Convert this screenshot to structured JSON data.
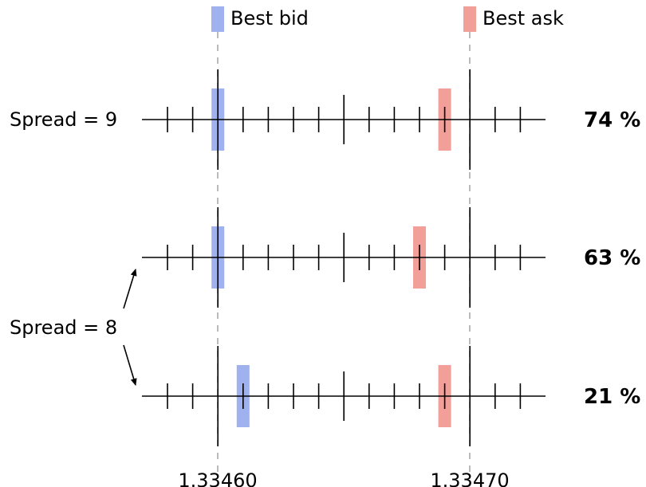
{
  "legend": {
    "bid": {
      "label": "Best bid",
      "color": "#9fb2ef"
    },
    "ask": {
      "label": "Best ask",
      "color": "#f29e99"
    }
  },
  "rows": [
    {
      "id": "row1",
      "bid_tick": 2,
      "ask_tick": 11,
      "percent": "74 %"
    },
    {
      "id": "row2",
      "bid_tick": 2,
      "ask_tick": 10,
      "percent": "63 %"
    },
    {
      "id": "row3",
      "bid_tick": 3,
      "ask_tick": 11,
      "percent": "21 %"
    }
  ],
  "side_labels": {
    "spread9": "Spread = 9",
    "spread8": "Spread = 8"
  },
  "axis": {
    "price_left": "1.33460",
    "price_right": "1.33470"
  }
}
